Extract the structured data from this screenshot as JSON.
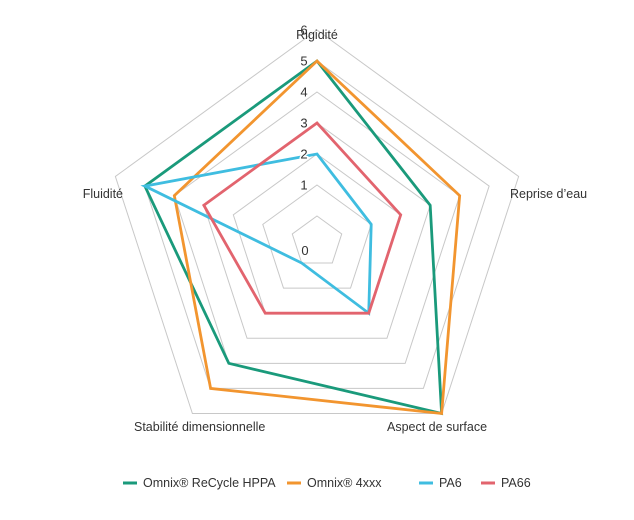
{
  "chart_data": {
    "type": "radar",
    "axes": [
      "Rigidité",
      "Reprise d’eau",
      "Aspect de surface",
      "Stabilité dimensionnelle",
      "Fluidité"
    ],
    "ticks": [
      "0",
      "1",
      "2",
      "3",
      "4",
      "5",
      "6"
    ],
    "rmin": 0,
    "rmax": 6,
    "grid": true,
    "legend_position": "bottom",
    "series": [
      {
        "name": "Omnix® ReCycle HPPA",
        "values": [
          5,
          3,
          6,
          4,
          5
        ],
        "color": "#1a9a7b"
      },
      {
        "name": "Omnix® 4xxx",
        "values": [
          5,
          4,
          6,
          5,
          4
        ],
        "color": "#f2952f"
      },
      {
        "name": "PA6",
        "values": [
          2,
          1,
          2,
          0,
          5
        ],
        "color": "#3fbde0"
      },
      {
        "name": "PA66",
        "values": [
          3,
          2,
          2,
          2,
          3
        ],
        "color": "#e2646e"
      }
    ]
  }
}
